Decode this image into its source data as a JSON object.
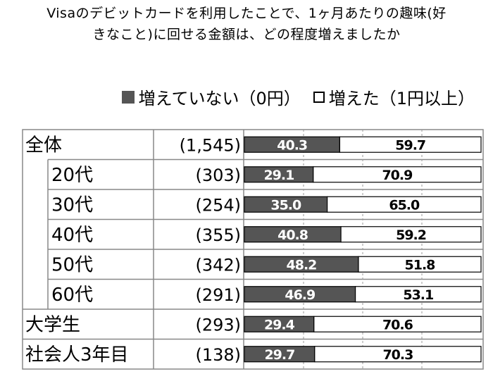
{
  "title_lines": [
    "Visaのデビットカードを利用したことで、1ヶ月あたりの趣味(好",
    "きなこと)に回せる金額は、どの程度増えましたか"
  ],
  "legend": [
    {
      "label": "増えていない（0円）",
      "color": "#555555"
    },
    {
      "label": "増えた（1円以上）",
      "color": "#ffffff"
    }
  ],
  "chart_data": {
    "type": "bar",
    "orientation": "horizontal",
    "stacked": true,
    "percent_stacked": true,
    "categories": [
      "全体",
      "20代",
      "30代",
      "40代",
      "50代",
      "60代",
      "大学生",
      "社会人3年目"
    ],
    "category_indent": [
      false,
      true,
      true,
      true,
      true,
      true,
      false,
      false
    ],
    "sample_sizes": [
      "(1,545)",
      "(303)",
      "(254)",
      "(355)",
      "(342)",
      "(291)",
      "(293)",
      "(138)"
    ],
    "series": [
      {
        "name": "増えていない（0円）",
        "color": "#555555",
        "values": [
          40.3,
          29.1,
          35.0,
          40.8,
          48.2,
          46.9,
          29.4,
          29.7
        ],
        "labels": [
          "40.3",
          "29.1",
          "35.0",
          "40.8",
          "48.2",
          "46.9",
          "29.4",
          "29.7"
        ]
      },
      {
        "name": "増えた（1円以上）",
        "color": "#ffffff",
        "values": [
          59.7,
          70.9,
          65.0,
          59.2,
          51.8,
          53.1,
          70.6,
          70.3
        ],
        "labels": [
          "59.7",
          "70.9",
          "65.0",
          "59.2",
          "51.8",
          "53.1",
          "70.6",
          "70.3"
        ]
      }
    ],
    "xlim": [
      0,
      100
    ],
    "legend_position": "top-right"
  }
}
